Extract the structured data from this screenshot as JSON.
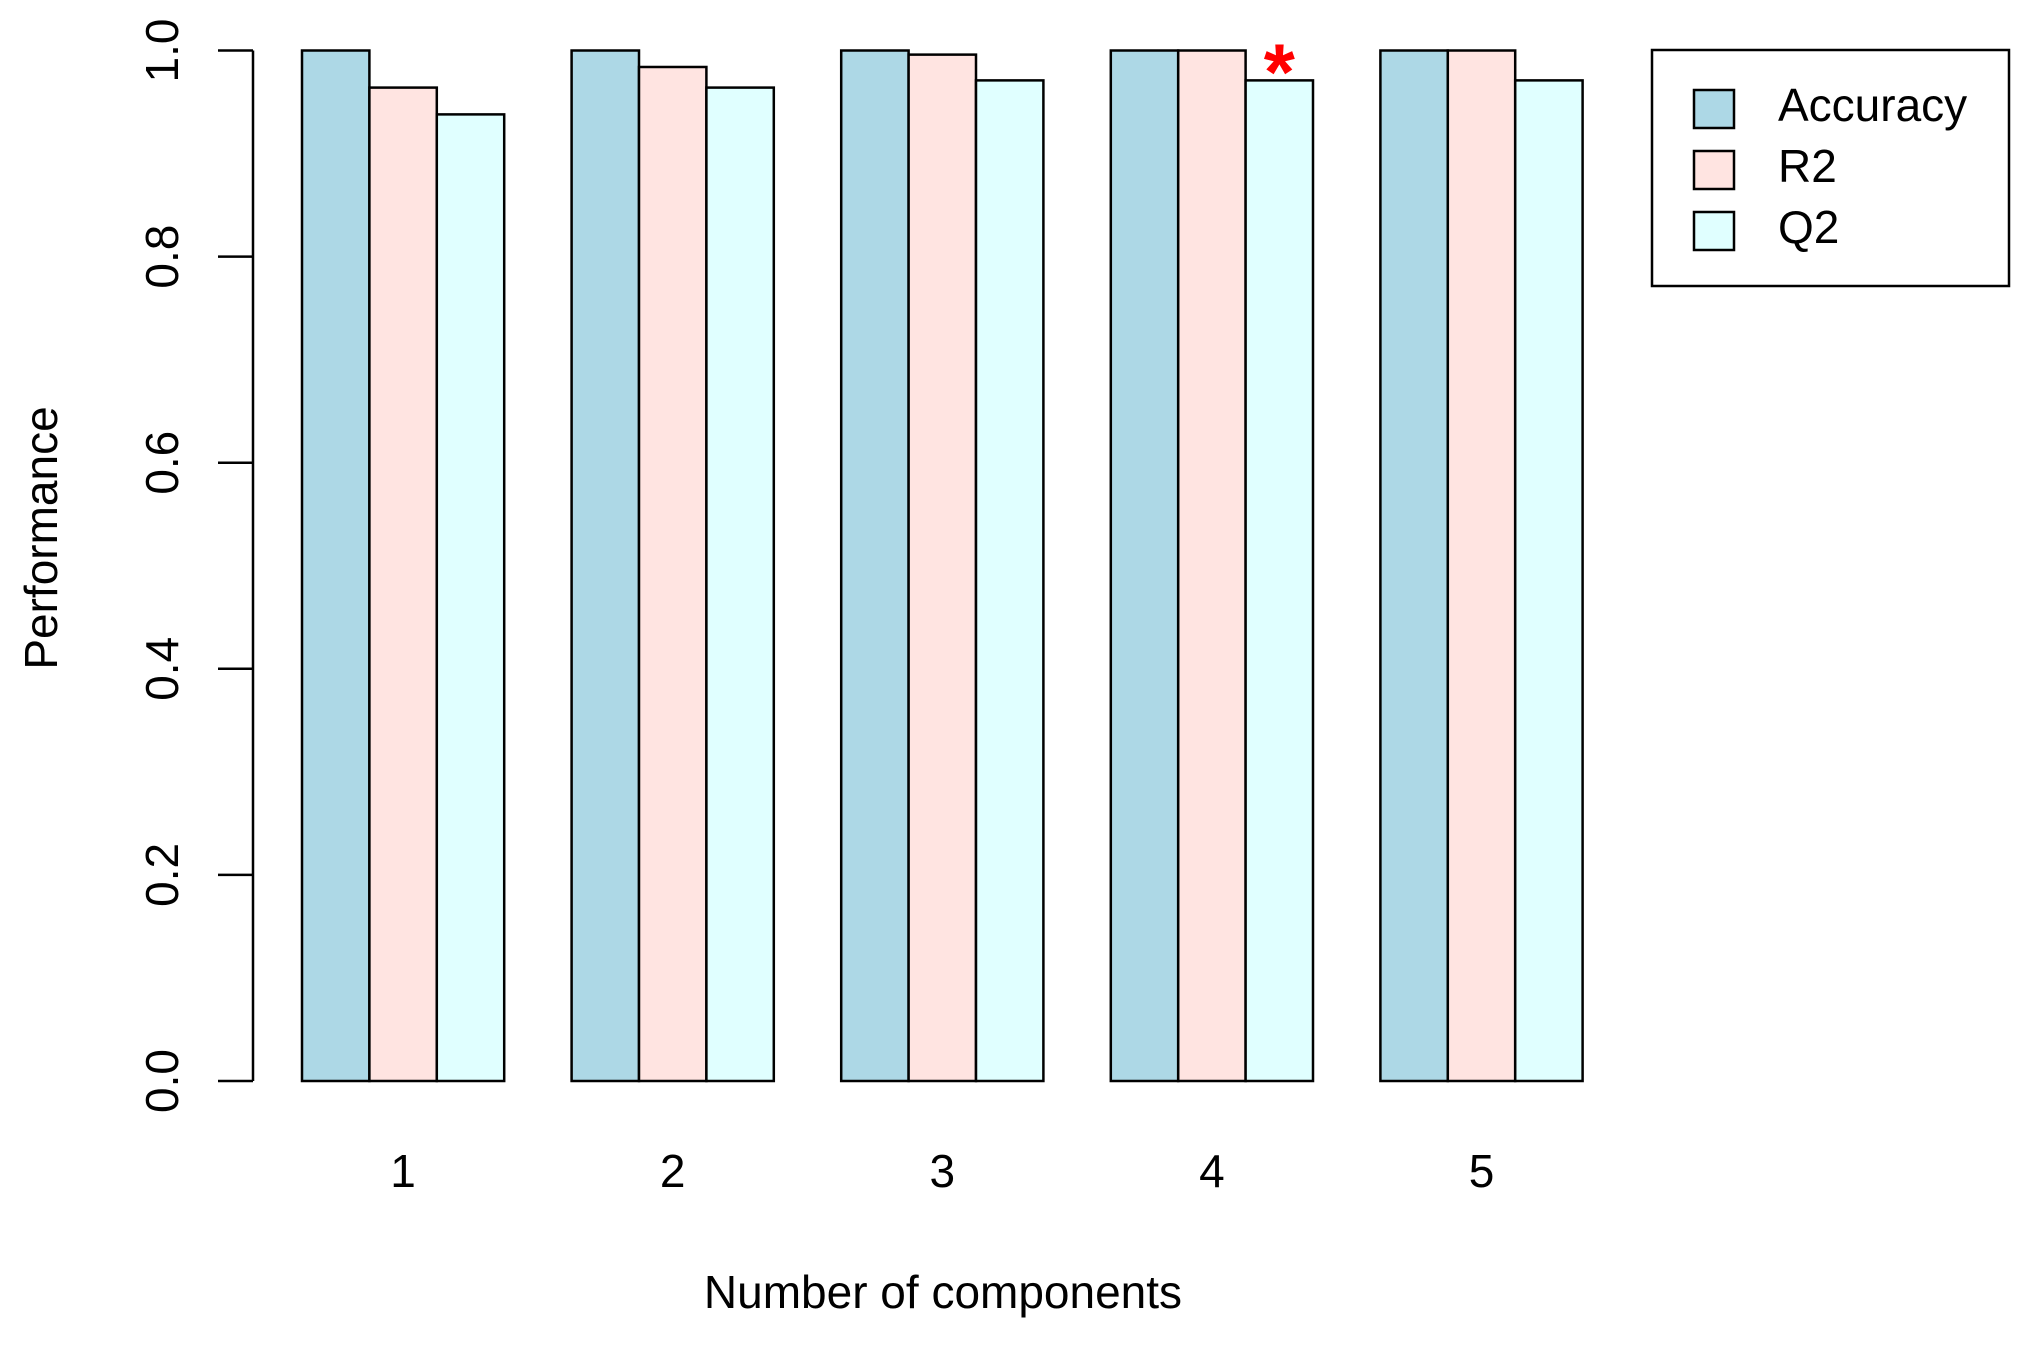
{
  "chart_data": {
    "type": "bar",
    "x_label": "Number of components",
    "y_label": "Performance",
    "categories": [
      "1",
      "2",
      "3",
      "4",
      "5"
    ],
    "series": [
      {
        "name": "Accuracy",
        "color": "#add8e6",
        "values": [
          1,
          1,
          1,
          1,
          1
        ]
      },
      {
        "name": "R2",
        "color": "#ffe4e1",
        "values": [
          0.964,
          0.984,
          0.996,
          1,
          1
        ]
      },
      {
        "name": "Q2",
        "color": "#e0ffff",
        "values": [
          0.938,
          0.964,
          0.971,
          0.971,
          0.971
        ]
      }
    ],
    "ylim": [
      0,
      1
    ],
    "yticks": [
      {
        "value": 0,
        "label": "0.0"
      },
      0.2,
      0.4,
      0.6,
      0.8,
      {
        "value": 1,
        "label": "1.0"
      }
    ],
    "legend": "top-right",
    "highlight": {
      "text": "*",
      "category": "4",
      "series": "Q2",
      "color": "#ff0000"
    }
  }
}
